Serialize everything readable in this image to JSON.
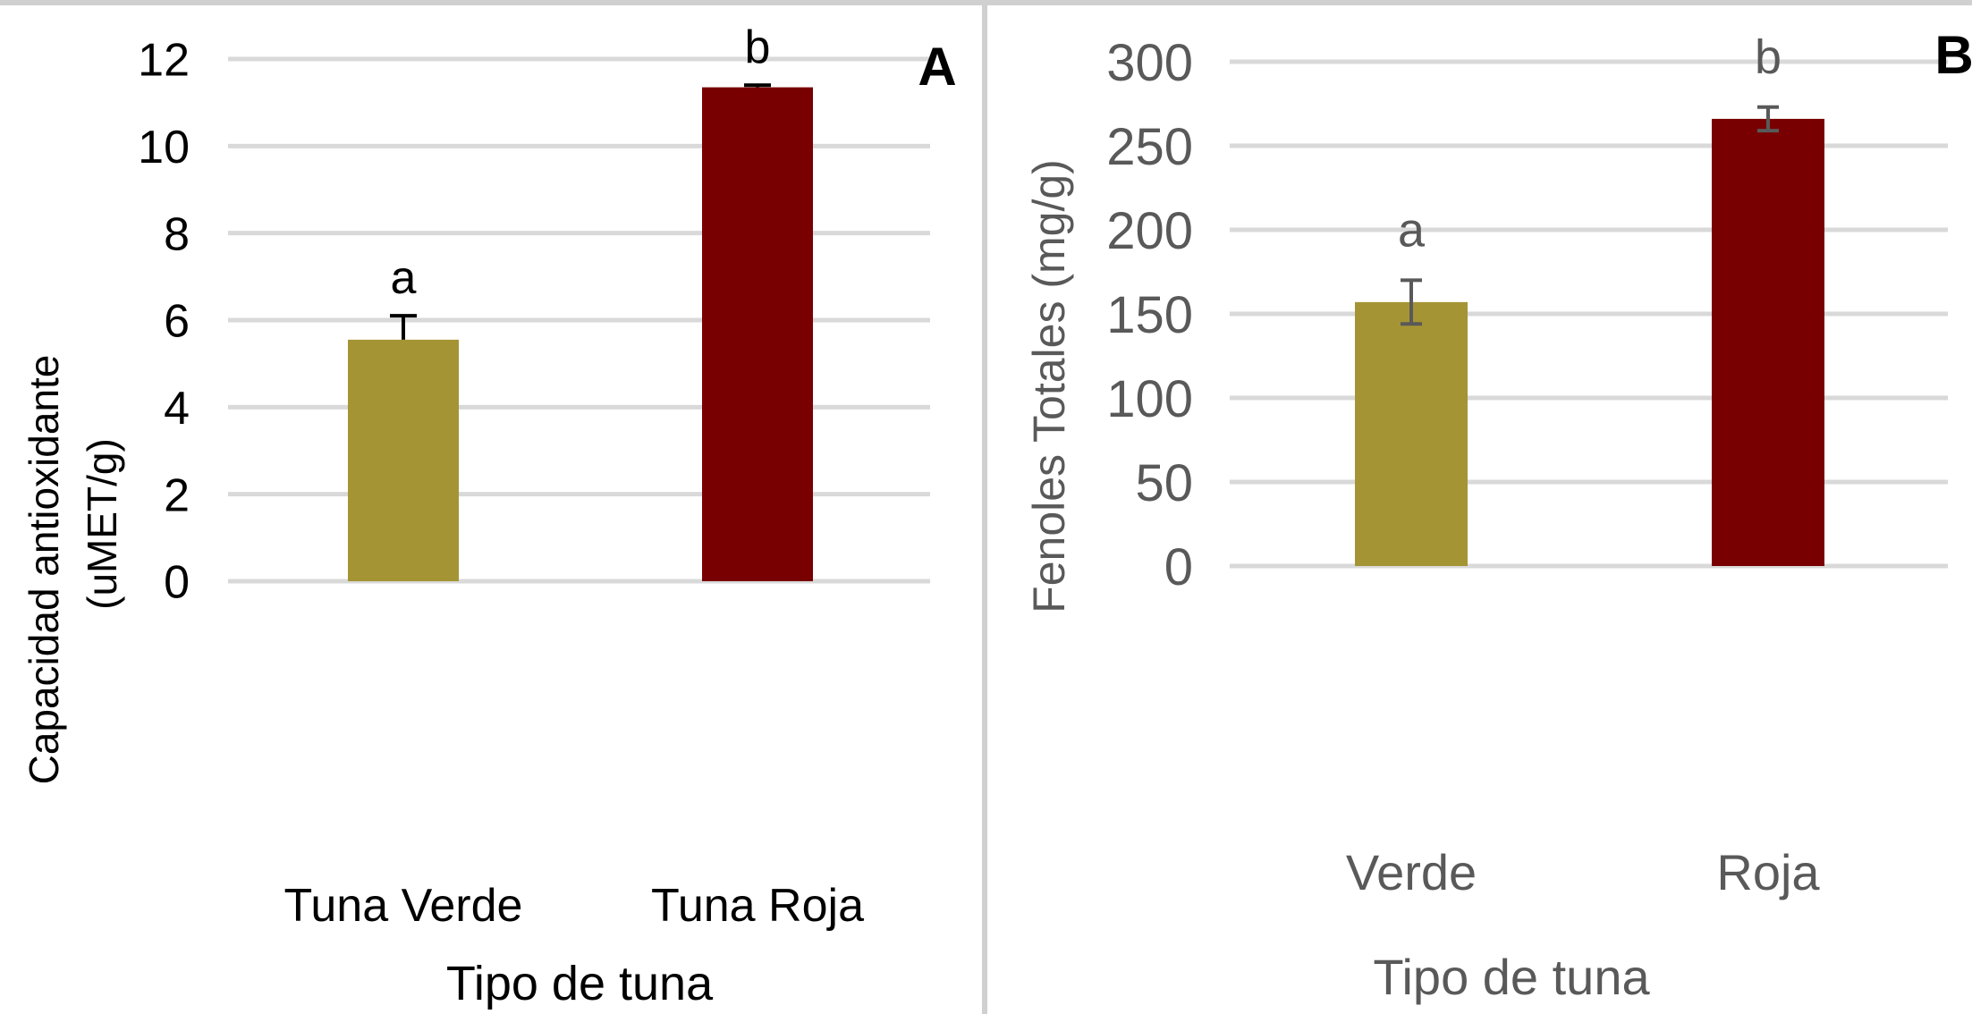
{
  "colors": {
    "verde": "#a59434",
    "roja": "#780000",
    "grid": "#d9d9d9",
    "frame": "#d0d0d0",
    "text_dark": "#000000",
    "text_gray": "#595959",
    "error_dark": "#000000",
    "error_gray": "#595959"
  },
  "chart_data": [
    {
      "type": "bar",
      "panel_letter": "A",
      "categories": [
        "Tuna Verde",
        "Tuna Roja"
      ],
      "values": [
        5.55,
        11.35
      ],
      "errors": [
        0.55,
        0.05
      ],
      "significance": [
        "a",
        "b"
      ],
      "ylim": [
        0,
        12
      ],
      "yticks": [
        "0",
        "2",
        "4",
        "6",
        "8",
        "10",
        "12"
      ],
      "ytick_values": [
        0,
        2,
        4,
        6,
        8,
        10,
        12
      ],
      "ylabel_line1": "Capacidad antioxidante",
      "ylabel_line2": "(uMET/g)",
      "xlabel": "Tipo de tuna",
      "grid": true,
      "legend": "none"
    },
    {
      "type": "bar",
      "panel_letter": "B",
      "categories": [
        "Verde",
        "Roja"
      ],
      "values": [
        157,
        266
      ],
      "errors": [
        13,
        7
      ],
      "significance": [
        "a",
        "b"
      ],
      "ylim": [
        0,
        300
      ],
      "yticks": [
        "0",
        "50",
        "100",
        "150",
        "200",
        "250",
        "300"
      ],
      "ytick_values": [
        0,
        50,
        100,
        150,
        200,
        250,
        300
      ],
      "ylabel": "Fenoles Totales (mg/g)",
      "xlabel": "Tipo de tuna",
      "grid": true,
      "legend": "none"
    }
  ]
}
